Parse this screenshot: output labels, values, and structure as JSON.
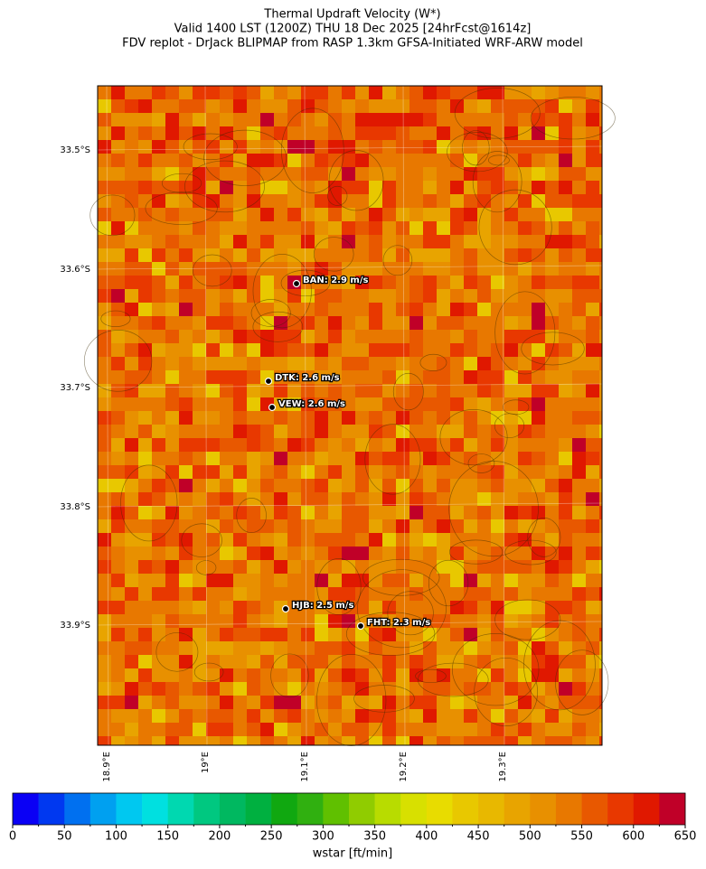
{
  "header": {
    "title": [
      "Thermal Updraft Velocity (W*)",
      "Valid 1400 LST (1200Z) THU 18 Dec 2025 [24hrFcst@1614z]",
      "FDV replot - DrJack BLIPMAP from RASP 1.3km GFSA-Initiated WRF-ARW model"
    ]
  },
  "map": {
    "lat_labels": [
      "33.5°S",
      "33.6°S",
      "33.7°S",
      "33.8°S",
      "33.9°S"
    ],
    "lon_labels": [
      "18.9°E",
      "19°E",
      "19.1°E",
      "19.2°E",
      "19.3°E"
    ],
    "stations": [
      {
        "label": "BAN: 2.9 m/s"
      },
      {
        "label": "DTK: 2.6 m/s"
      },
      {
        "label": "VEW: 2.6 m/s"
      },
      {
        "label": "HJB: 2.5 m/s"
      },
      {
        "label": "FHT: 2.3 m/s"
      }
    ]
  },
  "colorbar": {
    "ticks": [
      0,
      50,
      100,
      150,
      200,
      250,
      300,
      350,
      400,
      450,
      500,
      550,
      600,
      650
    ],
    "colors": [
      "#0a00f5",
      "#0038f0",
      "#0070f0",
      "#00a0f0",
      "#00c8f0",
      "#00e0e0",
      "#00d8b0",
      "#00c880",
      "#00b860",
      "#00b040",
      "#10a810",
      "#30b010",
      "#60c000",
      "#90cc00",
      "#b8dc00",
      "#d8e000",
      "#e8dc00",
      "#e8c800",
      "#e8b800",
      "#e8a400",
      "#e89000",
      "#e87800",
      "#e85800",
      "#e83800",
      "#e01800",
      "#c00028"
    ],
    "label": "wstar [ft/min]"
  }
}
